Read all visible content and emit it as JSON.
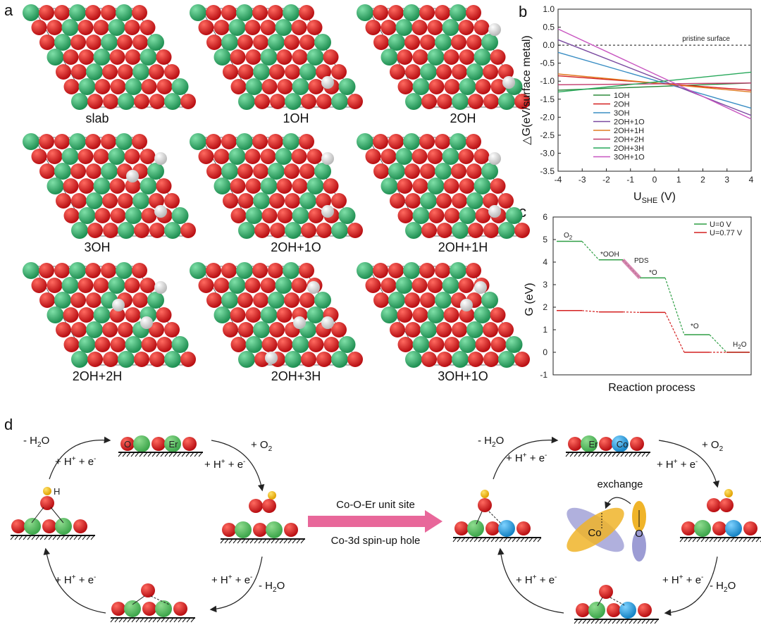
{
  "panels": {
    "a": "a",
    "b": "b",
    "c": "c",
    "d": "d"
  },
  "panel_a": {
    "labels": [
      "slab",
      "1OH",
      "2OH",
      "3OH",
      "2OH+1O",
      "2OH+1H",
      "2OH+2H",
      "2OH+3H",
      "3OH+1O"
    ],
    "colors": {
      "metal": "#3cb878",
      "oxygen": "#e0161c",
      "hydrogen": "#f2f2f2"
    }
  },
  "chart_data": [
    {
      "type": "line",
      "panel": "b",
      "title": "",
      "xlabel_main": "U",
      "xlabel_sub": "SHE",
      "xlabel_unit": " (V)",
      "ylabel": "△G(eV/surface metal)",
      "xlim": [
        -4,
        4
      ],
      "ylim": [
        -3.5,
        1.0
      ],
      "xticks": [
        -4,
        -3,
        -2,
        -1,
        0,
        1,
        2,
        3,
        4
      ],
      "yticks": [
        -3.5,
        -3.0,
        -2.5,
        -2.0,
        -1.5,
        -1.0,
        -0.5,
        0.0,
        0.5,
        1.0
      ],
      "annotation": "pristine surface",
      "series": [
        {
          "name": "1OH",
          "color": "#2e8b3d",
          "x": [
            -4,
            4
          ],
          "y": [
            -1.25,
            -1.05
          ]
        },
        {
          "name": "2OH",
          "color": "#d42020",
          "x": [
            -4,
            4
          ],
          "y": [
            -0.85,
            -1.25
          ]
        },
        {
          "name": "3OH",
          "color": "#3a8ec4",
          "x": [
            -4,
            4
          ],
          "y": [
            -0.2,
            -1.75
          ]
        },
        {
          "name": "2OH+1O",
          "color": "#7a4aa0",
          "x": [
            -4,
            4
          ],
          "y": [
            0.15,
            -1.95
          ]
        },
        {
          "name": "2OH+1H",
          "color": "#e07a20",
          "x": [
            -4,
            4
          ],
          "y": [
            -0.8,
            -1.3
          ]
        },
        {
          "name": "2OH+2H",
          "color": "#c0386a",
          "x": [
            -4,
            4
          ],
          "y": [
            -1.1,
            -1.05
          ]
        },
        {
          "name": "2OH+3H",
          "color": "#27a85a",
          "x": [
            -4,
            4
          ],
          "y": [
            -1.3,
            -0.75
          ]
        },
        {
          "name": "3OH+1O",
          "color": "#c855c0",
          "x": [
            -4,
            4
          ],
          "y": [
            0.45,
            -2.05
          ]
        }
      ]
    },
    {
      "type": "line",
      "panel": "c",
      "title": "",
      "xlabel": "Reaction process",
      "ylabel": "G (eV)",
      "ylim": [
        -1,
        6
      ],
      "yticks": [
        -1,
        0,
        1,
        2,
        3,
        4,
        5,
        6
      ],
      "series": [
        {
          "name": "U=0 V",
          "color": "#2e9e44",
          "levels": [
            4.92,
            4.1,
            3.3,
            0.78,
            0.0
          ]
        },
        {
          "name": "U=0.77 V",
          "color": "#d42020",
          "levels": [
            1.85,
            1.79,
            1.77,
            0.0,
            0.0
          ]
        }
      ],
      "step_labels": [
        "O",
        "*OOH",
        "*O",
        "*O",
        "H"
      ],
      "step_subs": [
        "2",
        "",
        "",
        "",
        "2"
      ],
      "step_tails": [
        "",
        "",
        "",
        "",
        "O"
      ],
      "pds_label": "PDS"
    }
  ],
  "panel_d": {
    "left": {
      "minus_h2o_top": "- H",
      "sub2": "2",
      "o_tail": "O",
      "hplus_top_left": "+ H",
      "plus": "+",
      "e": " + e",
      "minus": "-",
      "plus_o2": "+ O",
      "hplus_top_right": "+ H",
      "hplus_bottom_left": "+ H",
      "hplus_bottom_right": "+ H",
      "minus_h2o_bottom": "- H"
    },
    "center": {
      "arrow_top": "Co-O-Er unit site",
      "arrow_bottom": "Co-3d spin-up hole"
    },
    "atoms": {
      "O": "O",
      "Er": "Er",
      "Co": "Co",
      "H": "H"
    },
    "exchange": "exchange",
    "colors": {
      "oxygen": "#e0161c",
      "er": "#5cc06a",
      "co": "#1fa6e0",
      "hydrogen": "#f5b800",
      "arrow": "#e8679a"
    }
  }
}
